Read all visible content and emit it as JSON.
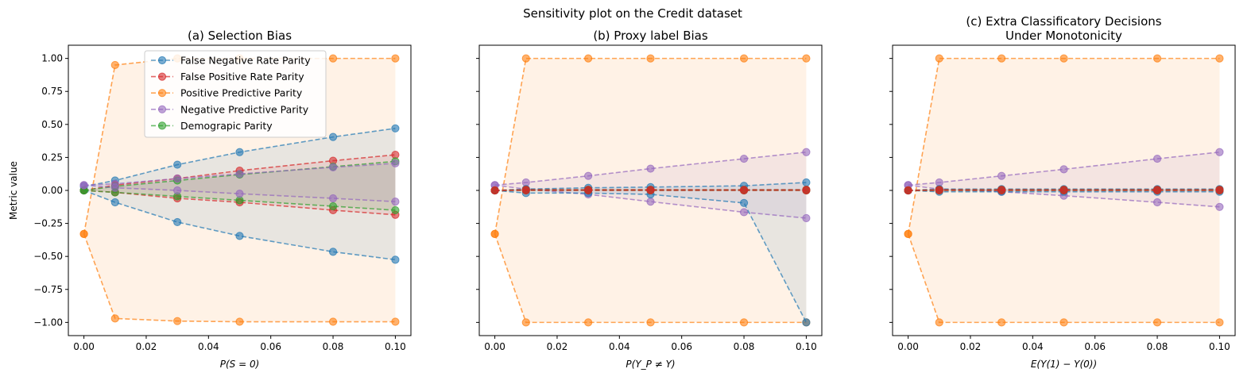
{
  "figure_title": "Sensitivity plot on the Credit dataset",
  "colors": {
    "False Negative Rate Parity": "#1f77b4",
    "False Positive Rate Parity": "#d62728",
    "Positive Predictive Parity": "#ff7f0e",
    "Negative Predictive Parity": "#9467bd",
    "Demograpic Parity": "#2ca02c"
  },
  "chart_data": [
    {
      "type": "line",
      "title_lines": [
        "(a) Selection Bias"
      ],
      "xlabel": "P(S = 0)",
      "ylabel": "Metric value",
      "xlim": [
        -0.005,
        0.105
      ],
      "ylim": [
        -1.1,
        1.1
      ],
      "xticks": [
        "0.00",
        "0.02",
        "0.04",
        "0.06",
        "0.08",
        "0.10"
      ],
      "yticks": [
        "1.00",
        "0.75",
        "0.50",
        "0.25",
        "0.00",
        "−0.25",
        "−0.50",
        "−0.75",
        "−1.00"
      ],
      "legend_position": "top-left",
      "legend": [
        "False Negative Rate Parity",
        "False Positive Rate Parity",
        "Positive Predictive Parity",
        "Negative Predictive Parity",
        "Demograpic Parity"
      ],
      "x": [
        0,
        0.01,
        0.03,
        0.05,
        0.08,
        0.1
      ],
      "series": [
        {
          "name": "Positive Predictive Parity",
          "upper": [
            -0.33,
            0.95,
            1.0,
            1.0,
            1.0,
            1.0
          ],
          "lower": [
            -0.33,
            -0.97,
            -0.99,
            -0.995,
            -0.995,
            -0.995
          ]
        },
        {
          "name": "False Negative Rate Parity",
          "upper": [
            0.03,
            0.075,
            0.195,
            0.29,
            0.405,
            0.47
          ],
          "lower": [
            0.0,
            -0.09,
            -0.24,
            -0.345,
            -0.465,
            -0.525
          ]
        },
        {
          "name": "False Positive Rate Parity",
          "upper": [
            0.0,
            0.04,
            0.09,
            0.15,
            0.225,
            0.27
          ],
          "lower": [
            0.0,
            -0.015,
            -0.06,
            -0.09,
            -0.15,
            -0.185
          ]
        },
        {
          "name": "Demograpic Parity",
          "upper": [
            0.0,
            0.03,
            0.075,
            0.12,
            0.18,
            0.22
          ],
          "lower": [
            0.0,
            -0.015,
            -0.045,
            -0.075,
            -0.12,
            -0.15
          ]
        },
        {
          "name": "Negative Predictive Parity",
          "upper": [
            0.04,
            0.05,
            0.09,
            0.125,
            0.175,
            0.205
          ],
          "lower": [
            0.04,
            0.02,
            0.0,
            -0.025,
            -0.06,
            -0.085
          ]
        }
      ]
    },
    {
      "type": "line",
      "title_lines": [
        "(b) Proxy label Bias"
      ],
      "xlabel": "P(Y_P ≠ Y)",
      "ylabel": "",
      "xlim": [
        -0.005,
        0.105
      ],
      "ylim": [
        -1.1,
        1.1
      ],
      "xticks": [
        "0.00",
        "0.02",
        "0.04",
        "0.06",
        "0.08",
        "0.10"
      ],
      "yticks": [],
      "legend": [],
      "x": [
        0,
        0.01,
        0.03,
        0.05,
        0.08,
        0.1
      ],
      "series": [
        {
          "name": "Positive Predictive Parity",
          "upper": [
            -0.33,
            1.0,
            1.0,
            1.0,
            1.0,
            1.0
          ],
          "lower": [
            -0.33,
            -1.0,
            -1.0,
            -1.0,
            -1.0,
            -1.0
          ]
        },
        {
          "name": "Negative Predictive Parity",
          "upper": [
            0.04,
            0.06,
            0.11,
            0.165,
            0.24,
            0.29
          ],
          "lower": [
            0.04,
            0.01,
            -0.03,
            -0.085,
            -0.165,
            -0.21
          ]
        },
        {
          "name": "False Negative Rate Parity",
          "upper": [
            0.0,
            0.01,
            0.02,
            0.025,
            0.035,
            0.06
          ],
          "lower": [
            0.0,
            -0.02,
            -0.02,
            -0.03,
            -0.095,
            -1.0
          ]
        },
        {
          "name": "Demograpic Parity",
          "upper": [
            0.0,
            0.005,
            0.005,
            0.005,
            0.005,
            0.005
          ],
          "lower": [
            0.0,
            0.0,
            0.0,
            0.0,
            0.0,
            0.0
          ]
        },
        {
          "name": "False Positive Rate Parity",
          "upper": [
            0.0,
            0.005,
            0.005,
            0.005,
            0.005,
            0.005
          ],
          "lower": [
            0.0,
            0.0,
            0.0,
            0.0,
            0.0,
            0.0
          ]
        }
      ]
    },
    {
      "type": "line",
      "title_lines": [
        "(c) Extra Classificatory Decisions",
        "Under Monotonicity"
      ],
      "xlabel": "E(Y(1) − Y(0))",
      "ylabel": "",
      "xlim": [
        -0.005,
        0.105
      ],
      "ylim": [
        -1.1,
        1.1
      ],
      "xticks": [
        "0.00",
        "0.02",
        "0.04",
        "0.06",
        "0.08",
        "0.10"
      ],
      "yticks": [],
      "legend": [],
      "x": [
        0,
        0.01,
        0.03,
        0.05,
        0.08,
        0.1
      ],
      "series": [
        {
          "name": "Positive Predictive Parity",
          "upper": [
            -0.33,
            1.0,
            1.0,
            1.0,
            1.0,
            1.0
          ],
          "lower": [
            -0.33,
            -1.0,
            -1.0,
            -1.0,
            -1.0,
            -1.0
          ]
        },
        {
          "name": "Negative Predictive Parity",
          "upper": [
            0.04,
            0.06,
            0.11,
            0.16,
            0.24,
            0.29
          ],
          "lower": [
            0.04,
            0.01,
            -0.01,
            -0.04,
            -0.09,
            -0.125
          ]
        },
        {
          "name": "False Negative Rate Parity",
          "upper": [
            0.0,
            0.01,
            0.01,
            0.01,
            0.01,
            0.01
          ],
          "lower": [
            0.0,
            -0.01,
            -0.01,
            -0.01,
            -0.01,
            -0.01
          ]
        },
        {
          "name": "Demograpic Parity",
          "upper": [
            0.0,
            0.005,
            0.005,
            0.005,
            0.005,
            0.005
          ],
          "lower": [
            0.0,
            0.0,
            0.0,
            0.0,
            0.0,
            0.0
          ]
        },
        {
          "name": "False Positive Rate Parity",
          "upper": [
            0.0,
            0.005,
            0.005,
            0.005,
            0.005,
            0.005
          ],
          "lower": [
            0.0,
            0.0,
            0.0,
            0.0,
            0.0,
            0.0
          ]
        }
      ]
    }
  ]
}
